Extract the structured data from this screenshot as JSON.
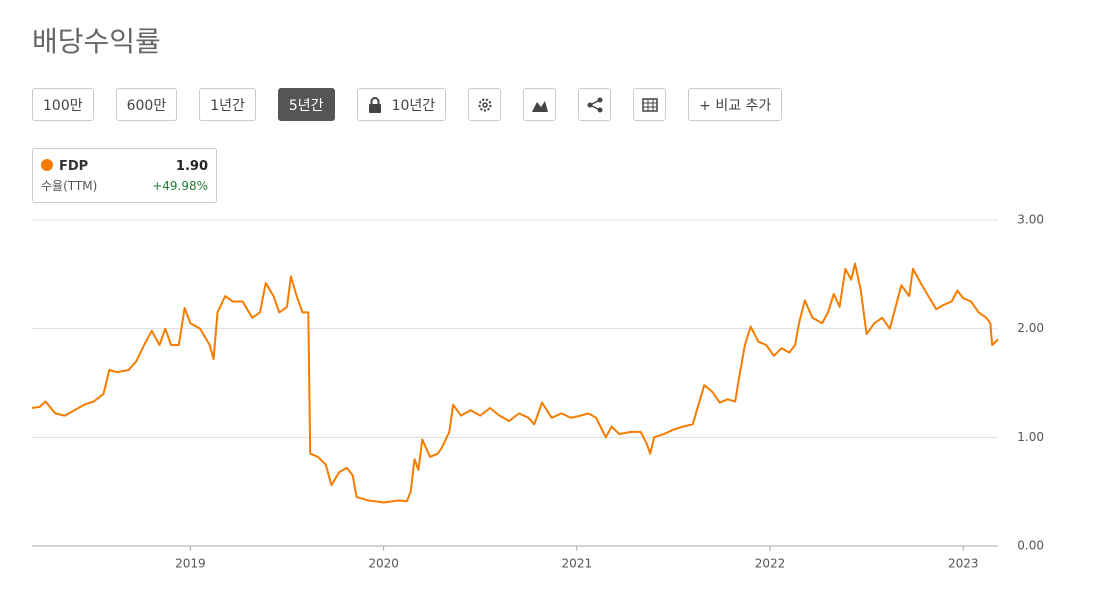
{
  "header": {
    "title": "배당수익률"
  },
  "toolbar": {
    "buttons": [
      "100만",
      "600만",
      "1년간",
      "5년간",
      "10년간",
      "+ 비교 추가"
    ],
    "active": 3
  },
  "legend": {
    "symbol": "FDP",
    "value": "1.90",
    "metric": "수율(TTM)",
    "change": "+49.98%"
  },
  "chart_data": {
    "type": "line",
    "x": [
      2018.18,
      2018.22,
      2018.25,
      2018.3,
      2018.35,
      2018.4,
      2018.45,
      2018.5,
      2018.55,
      2018.58,
      2018.62,
      2018.68,
      2018.72,
      2018.76,
      2018.8,
      2018.84,
      2018.87,
      2018.9,
      2018.94,
      2018.97,
      2019.0,
      2019.05,
      2019.1,
      2019.12,
      2019.14,
      2019.18,
      2019.22,
      2019.27,
      2019.32,
      2019.36,
      2019.39,
      2019.43,
      2019.46,
      2019.5,
      2019.52,
      2019.55,
      2019.58,
      2019.61,
      2019.62,
      2019.66,
      2019.7,
      2019.73,
      2019.77,
      2019.81,
      2019.84,
      2019.86,
      2019.92,
      2020.0,
      2020.08,
      2020.12,
      2020.14,
      2020.16,
      2020.18,
      2020.2,
      2020.24,
      2020.28,
      2020.3,
      2020.34,
      2020.36,
      2020.4,
      2020.45,
      2020.5,
      2020.55,
      2020.6,
      2020.65,
      2020.7,
      2020.75,
      2020.78,
      2020.82,
      2020.87,
      2020.92,
      2020.97,
      2021.02,
      2021.06,
      2021.1,
      2021.15,
      2021.18,
      2021.22,
      2021.28,
      2021.33,
      2021.36,
      2021.38,
      2021.4,
      2021.45,
      2021.5,
      2021.55,
      2021.6,
      2021.63,
      2021.66,
      2021.7,
      2021.74,
      2021.78,
      2021.82,
      2021.84,
      2021.87,
      2021.9,
      2021.94,
      2021.98,
      2022.02,
      2022.06,
      2022.1,
      2022.13,
      2022.15,
      2022.18,
      2022.22,
      2022.27,
      2022.3,
      2022.33,
      2022.36,
      2022.39,
      2022.42,
      2022.44,
      2022.47,
      2022.5,
      2022.54,
      2022.58,
      2022.62,
      2022.65,
      2022.68,
      2022.72,
      2022.74,
      2022.78,
      2022.82,
      2022.86,
      2022.9,
      2022.94,
      2022.97,
      2023.0,
      2023.04,
      2023.08,
      2023.12,
      2023.14,
      2023.15,
      2023.18
    ],
    "series": [
      {
        "name": "FDP",
        "color": "#f57c00",
        "values": [
          1.27,
          1.28,
          1.33,
          1.22,
          1.2,
          1.25,
          1.3,
          1.33,
          1.4,
          1.62,
          1.6,
          1.62,
          1.7,
          1.85,
          1.98,
          1.85,
          2.0,
          1.85,
          1.85,
          2.19,
          2.05,
          2.0,
          1.85,
          1.72,
          2.15,
          2.3,
          2.25,
          2.25,
          2.1,
          2.15,
          2.42,
          2.3,
          2.15,
          2.2,
          2.48,
          2.3,
          2.15,
          2.15,
          0.85,
          0.82,
          0.75,
          0.56,
          0.68,
          0.72,
          0.65,
          0.45,
          0.42,
          0.4,
          0.42,
          0.41,
          0.5,
          0.8,
          0.7,
          0.98,
          0.82,
          0.85,
          0.9,
          1.05,
          1.3,
          1.2,
          1.25,
          1.2,
          1.27,
          1.2,
          1.15,
          1.22,
          1.18,
          1.12,
          1.32,
          1.18,
          1.22,
          1.18,
          1.2,
          1.22,
          1.18,
          1.0,
          1.1,
          1.03,
          1.05,
          1.05,
          0.95,
          0.85,
          1.0,
          1.03,
          1.07,
          1.1,
          1.12,
          1.3,
          1.48,
          1.42,
          1.32,
          1.35,
          1.33,
          1.55,
          1.85,
          2.02,
          1.88,
          1.85,
          1.75,
          1.82,
          1.78,
          1.85,
          2.05,
          2.26,
          2.1,
          2.05,
          2.15,
          2.32,
          2.2,
          2.55,
          2.45,
          2.6,
          2.35,
          1.95,
          2.05,
          2.1,
          2.0,
          2.2,
          2.4,
          2.3,
          2.55,
          2.42,
          2.3,
          2.18,
          2.22,
          2.25,
          2.35,
          2.28,
          2.25,
          2.15,
          2.1,
          2.05,
          1.85,
          1.9
        ]
      }
    ],
    "xlim": [
      2018.18,
      2023.18
    ],
    "xticks": [
      2019,
      2020,
      2021,
      2022,
      2023
    ],
    "ylim": [
      0,
      3
    ],
    "yticks": [
      {
        "value": 0,
        "label": "0.00"
      },
      {
        "value": 1,
        "label": "1.00"
      },
      {
        "value": 2,
        "label": "2.00"
      },
      {
        "value": 3,
        "label": "3.00"
      }
    ],
    "grid": true
  }
}
